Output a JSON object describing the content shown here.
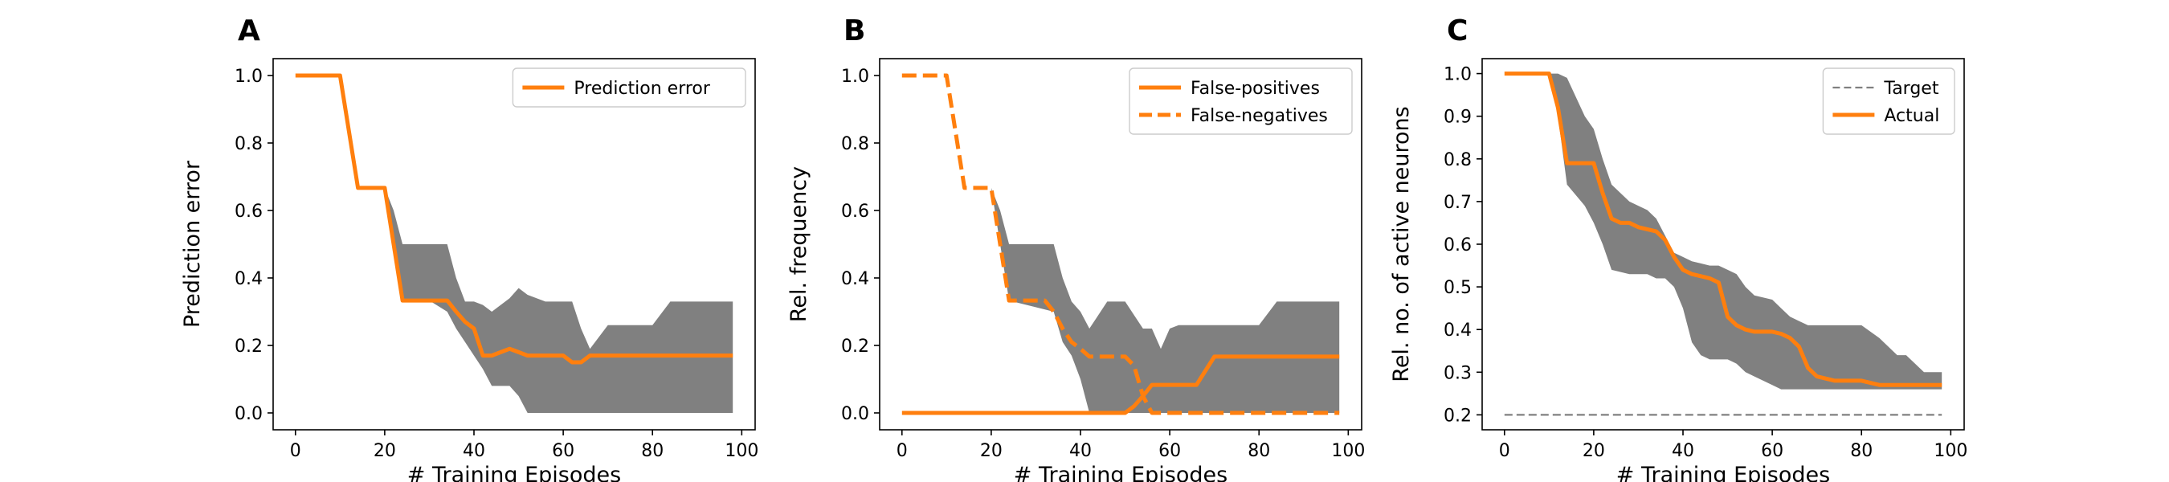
{
  "figure": {
    "panel_letters": [
      "A",
      "B",
      "C"
    ]
  },
  "colors": {
    "orange": "#ff7f0e",
    "band": "#808080",
    "target": "#808080"
  },
  "chart_data": [
    {
      "type": "line",
      "panel": "A",
      "xlabel": "# Training Episodes",
      "ylabel": "Prediction error",
      "xlim": [
        -5,
        103
      ],
      "ylim": [
        -0.05,
        1.05
      ],
      "xticks": [
        "0",
        "20",
        "40",
        "60",
        "80",
        "100"
      ],
      "yticks": [
        "0.0",
        "0.2",
        "0.4",
        "0.6",
        "0.8",
        "1.0"
      ],
      "grid": false,
      "legend_position": "top-right",
      "series": [
        {
          "name": "Prediction error",
          "style": "solid",
          "x": [
            0,
            10,
            14,
            20,
            24,
            34,
            36,
            38,
            40,
            42,
            44,
            46,
            48,
            50,
            52,
            60,
            62,
            64,
            66,
            98
          ],
          "y": [
            1.0,
            1.0,
            0.667,
            0.667,
            0.333,
            0.333,
            0.3,
            0.27,
            0.25,
            0.17,
            0.17,
            0.18,
            0.19,
            0.18,
            0.17,
            0.17,
            0.15,
            0.15,
            0.17,
            0.17
          ]
        }
      ],
      "band": {
        "x": [
          0,
          10,
          14,
          20,
          22,
          24,
          30,
          34,
          36,
          38,
          40,
          42,
          44,
          46,
          48,
          50,
          52,
          56,
          58,
          62,
          64,
          66,
          70,
          74,
          80,
          84,
          90,
          98
        ],
        "upper": [
          1.0,
          1.0,
          0.667,
          0.667,
          0.6,
          0.5,
          0.5,
          0.5,
          0.4,
          0.33,
          0.33,
          0.32,
          0.3,
          0.32,
          0.34,
          0.37,
          0.35,
          0.33,
          0.33,
          0.33,
          0.25,
          0.19,
          0.26,
          0.26,
          0.26,
          0.33,
          0.33,
          0.33
        ],
        "lower": [
          1.0,
          1.0,
          0.667,
          0.667,
          0.5,
          0.333,
          0.333,
          0.3,
          0.25,
          0.21,
          0.17,
          0.13,
          0.08,
          0.08,
          0.08,
          0.05,
          0.0,
          0.0,
          0.0,
          0.0,
          0.0,
          0.0,
          0.0,
          0.0,
          0.0,
          0.0,
          0.0,
          0.0
        ]
      }
    },
    {
      "type": "line",
      "panel": "B",
      "xlabel": "# Training Episodes",
      "ylabel": "Rel. frequency",
      "xlim": [
        -5,
        103
      ],
      "ylim": [
        -0.05,
        1.05
      ],
      "xticks": [
        "0",
        "20",
        "40",
        "60",
        "80",
        "100"
      ],
      "yticks": [
        "0.0",
        "0.2",
        "0.4",
        "0.6",
        "0.8",
        "1.0"
      ],
      "grid": false,
      "legend_position": "top-right",
      "series": [
        {
          "name": "False-positives",
          "style": "solid",
          "x": [
            0,
            50,
            52,
            54,
            56,
            64,
            66,
            70,
            98
          ],
          "y": [
            0.0,
            0.0,
            0.02,
            0.05,
            0.083,
            0.083,
            0.083,
            0.167,
            0.167
          ]
        },
        {
          "name": "False-negatives",
          "style": "dashed",
          "x": [
            0,
            10,
            14,
            20,
            22,
            24,
            32,
            34,
            36,
            38,
            40,
            42,
            44,
            50,
            52,
            54,
            56,
            98
          ],
          "y": [
            1.0,
            1.0,
            0.667,
            0.667,
            0.5,
            0.333,
            0.333,
            0.3,
            0.25,
            0.21,
            0.19,
            0.167,
            0.167,
            0.167,
            0.14,
            0.05,
            0.0,
            0.0
          ]
        }
      ],
      "band": {
        "x": [
          0,
          10,
          14,
          20,
          22,
          24,
          34,
          36,
          38,
          40,
          42,
          44,
          46,
          48,
          50,
          52,
          54,
          56,
          58,
          60,
          62,
          70,
          80,
          84,
          90,
          98
        ],
        "upper": [
          1.0,
          1.0,
          0.667,
          0.667,
          0.6,
          0.5,
          0.5,
          0.4,
          0.33,
          0.3,
          0.25,
          0.29,
          0.33,
          0.33,
          0.33,
          0.29,
          0.25,
          0.25,
          0.19,
          0.25,
          0.26,
          0.26,
          0.26,
          0.33,
          0.33,
          0.33
        ],
        "lower": [
          1.0,
          1.0,
          0.667,
          0.667,
          0.5,
          0.333,
          0.3,
          0.21,
          0.17,
          0.1,
          0.0,
          0.0,
          0.0,
          0.0,
          0.0,
          0.0,
          0.0,
          0.0,
          0.0,
          0.0,
          0.0,
          0.0,
          0.0,
          0.0,
          0.0,
          0.0
        ]
      }
    },
    {
      "type": "line",
      "panel": "C",
      "xlabel": "# Training Episodes",
      "ylabel": "Rel. no. of active neurons",
      "xlim": [
        -5,
        103
      ],
      "ylim": [
        0.165,
        1.035
      ],
      "xticks": [
        "0",
        "20",
        "40",
        "60",
        "80",
        "100"
      ],
      "yticks": [
        "0.2",
        "0.3",
        "0.4",
        "0.5",
        "0.6",
        "0.7",
        "0.8",
        "0.9",
        "1.0"
      ],
      "grid": false,
      "legend_position": "top-right",
      "series": [
        {
          "name": "Target",
          "style": "dashed-gray",
          "x": [
            0,
            98
          ],
          "y": [
            0.2,
            0.2
          ]
        },
        {
          "name": "Actual",
          "style": "solid",
          "x": [
            0,
            10,
            12,
            14,
            18,
            20,
            22,
            24,
            26,
            28,
            30,
            32,
            34,
            36,
            38,
            40,
            42,
            44,
            46,
            48,
            50,
            52,
            54,
            56,
            60,
            62,
            64,
            66,
            68,
            70,
            74,
            76,
            80,
            84,
            88,
            90,
            98
          ],
          "y": [
            1.0,
            1.0,
            0.92,
            0.79,
            0.79,
            0.79,
            0.72,
            0.66,
            0.65,
            0.65,
            0.64,
            0.635,
            0.63,
            0.61,
            0.57,
            0.54,
            0.53,
            0.525,
            0.52,
            0.51,
            0.43,
            0.41,
            0.4,
            0.395,
            0.395,
            0.39,
            0.38,
            0.36,
            0.31,
            0.29,
            0.28,
            0.28,
            0.28,
            0.27,
            0.27,
            0.27,
            0.27
          ]
        }
      ],
      "band": {
        "x": [
          0,
          10,
          12,
          14,
          18,
          20,
          22,
          24,
          28,
          32,
          34,
          36,
          38,
          40,
          42,
          44,
          46,
          48,
          50,
          52,
          54,
          56,
          60,
          62,
          64,
          66,
          68,
          70,
          74,
          80,
          84,
          88,
          90,
          94,
          98
        ],
        "upper": [
          1.0,
          1.0,
          1.0,
          0.99,
          0.9,
          0.87,
          0.8,
          0.74,
          0.7,
          0.68,
          0.66,
          0.62,
          0.58,
          0.57,
          0.56,
          0.555,
          0.55,
          0.55,
          0.54,
          0.53,
          0.5,
          0.48,
          0.47,
          0.45,
          0.43,
          0.42,
          0.41,
          0.41,
          0.41,
          0.41,
          0.38,
          0.34,
          0.34,
          0.3,
          0.3
        ],
        "lower": [
          1.0,
          1.0,
          0.9,
          0.74,
          0.69,
          0.65,
          0.6,
          0.54,
          0.53,
          0.53,
          0.52,
          0.52,
          0.5,
          0.45,
          0.37,
          0.34,
          0.33,
          0.33,
          0.33,
          0.32,
          0.3,
          0.29,
          0.27,
          0.26,
          0.26,
          0.26,
          0.26,
          0.26,
          0.26,
          0.26,
          0.26,
          0.26,
          0.26,
          0.26,
          0.26
        ]
      }
    }
  ]
}
